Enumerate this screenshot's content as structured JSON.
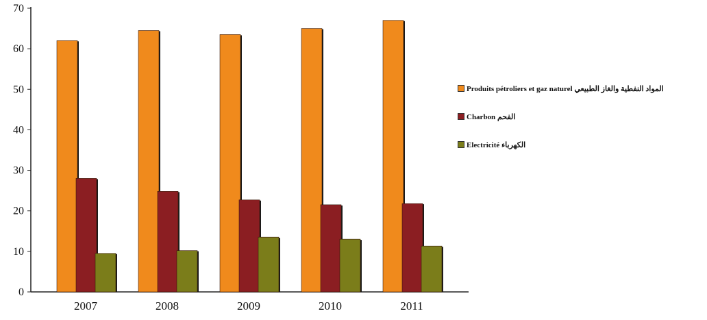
{
  "chart_data": {
    "type": "bar",
    "title": "",
    "xlabel": "",
    "ylabel": "",
    "categories": [
      "2007",
      "2008",
      "2009",
      "2010",
      "2011"
    ],
    "ylim": [
      0,
      70
    ],
    "yticks": [
      "0",
      "10",
      "20",
      "30",
      "40",
      "50",
      "60",
      "70"
    ],
    "grid": false,
    "legend_position": "right",
    "series": [
      {
        "name": "Produits pétroliers et gaz naturel المواد النفطية والغاز الطبيعي",
        "color": "#f08a1c",
        "values": [
          62,
          64.5,
          63.5,
          65,
          67
        ]
      },
      {
        "name": "Charbon الفحم",
        "color": "#8b1e22",
        "values": [
          28,
          24.8,
          22.7,
          21.5,
          21.8
        ]
      },
      {
        "name": "Electricité الكهرباء",
        "color": "#7b7d1a",
        "values": [
          9.5,
          10.2,
          13.5,
          13,
          11.3
        ]
      }
    ]
  }
}
